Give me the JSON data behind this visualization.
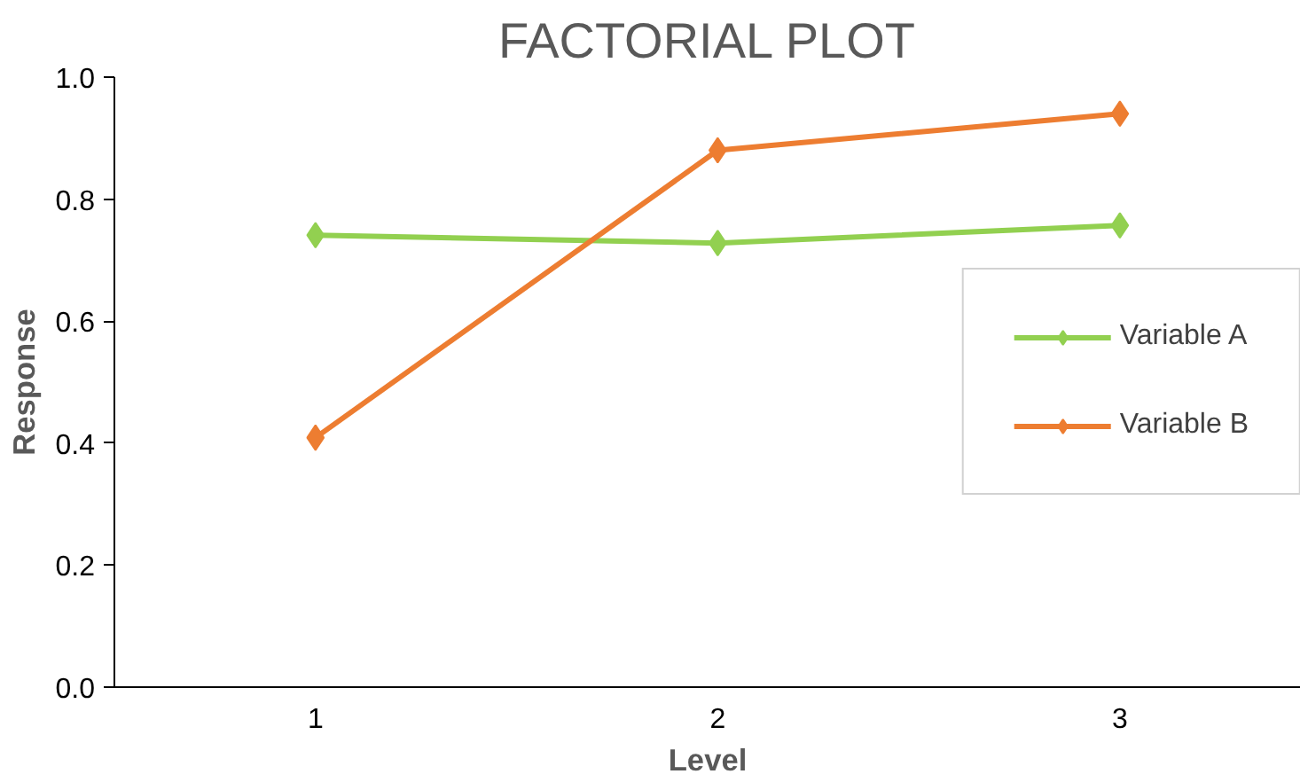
{
  "chart_data": {
    "type": "line",
    "title": "FACTORIAL PLOT",
    "xlabel": "Level",
    "ylabel": "Response",
    "categories": [
      "1",
      "2",
      "3"
    ],
    "series": [
      {
        "name": "Variable A",
        "color": "#92d050",
        "values": [
          0.741,
          0.728,
          0.757
        ]
      },
      {
        "name": "Variable B",
        "color": "#ed7d31",
        "values": [
          0.409,
          0.88,
          0.94
        ]
      }
    ],
    "ylim": [
      0,
      1
    ],
    "yticks": [
      {
        "value": 0,
        "label": "0.0"
      },
      {
        "value": 0.2,
        "label": "0.2"
      },
      {
        "value": 0.4,
        "label": "0.4"
      },
      {
        "value": 0.6,
        "label": "0.6"
      },
      {
        "value": 0.8,
        "label": "0.8"
      },
      {
        "value": 1,
        "label": "1.0"
      }
    ],
    "grid": false,
    "legend": "right",
    "marker": "diamond",
    "line_style": "solid"
  }
}
